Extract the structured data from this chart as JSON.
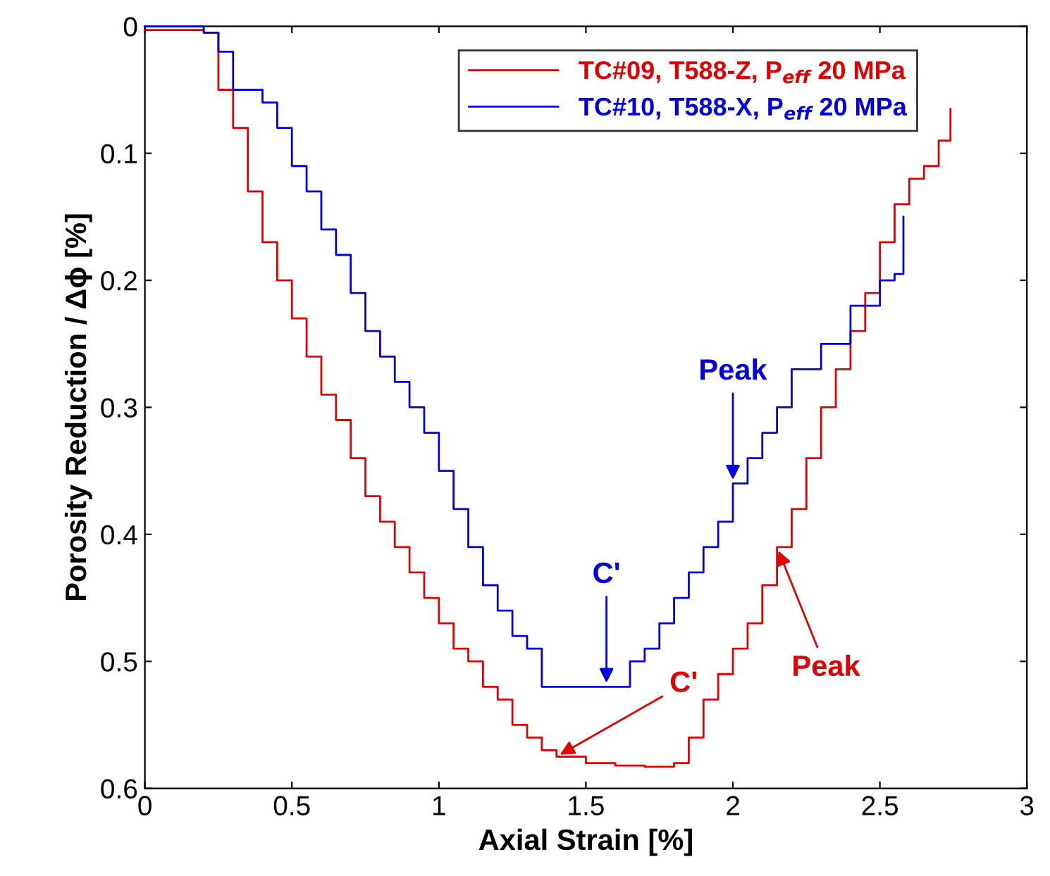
{
  "chart_data": {
    "type": "step",
    "xlabel": "Axial Strain [%]",
    "ylabel": "Porosity Reduction / Δϕ [%]",
    "xlim": [
      0,
      3
    ],
    "ylim": [
      0.6,
      0
    ],
    "xticks": [
      0,
      0.5,
      1,
      1.5,
      2,
      2.5,
      3
    ],
    "yticks": [
      0,
      0.1,
      0.2,
      0.3,
      0.4,
      0.5,
      0.6
    ],
    "grid": false,
    "legend": "top right",
    "series": [
      {
        "name": "TC#09, T588-Z, P$_{eff}$ 20 MPa",
        "color": "#e00000",
        "x": [
          0,
          0.1,
          0.2,
          0.25,
          0.3,
          0.35,
          0.4,
          0.45,
          0.5,
          0.55,
          0.6,
          0.65,
          0.7,
          0.75,
          0.8,
          0.85,
          0.9,
          0.95,
          1.0,
          1.05,
          1.1,
          1.15,
          1.2,
          1.25,
          1.3,
          1.35,
          1.4,
          1.5,
          1.6,
          1.7,
          1.8,
          1.85,
          1.9,
          1.95,
          2.0,
          2.05,
          2.1,
          2.15,
          2.2,
          2.25,
          2.3,
          2.35,
          2.4,
          2.45,
          2.5,
          2.55,
          2.6,
          2.65,
          2.7,
          2.74
        ],
        "values": [
          0.003,
          0.003,
          0.005,
          0.05,
          0.08,
          0.13,
          0.17,
          0.2,
          0.23,
          0.26,
          0.29,
          0.31,
          0.34,
          0.37,
          0.39,
          0.41,
          0.43,
          0.45,
          0.47,
          0.49,
          0.5,
          0.52,
          0.53,
          0.55,
          0.56,
          0.57,
          0.575,
          0.58,
          0.582,
          0.583,
          0.58,
          0.56,
          0.53,
          0.51,
          0.49,
          0.47,
          0.44,
          0.41,
          0.38,
          0.34,
          0.3,
          0.27,
          0.24,
          0.21,
          0.17,
          0.14,
          0.12,
          0.11,
          0.09,
          0.065
        ]
      },
      {
        "name": "TC#10, T588-X, P$_{eff}$ 20 MPa",
        "color": "#0000e0",
        "x": [
          0,
          0.1,
          0.2,
          0.25,
          0.3,
          0.4,
          0.45,
          0.5,
          0.55,
          0.6,
          0.65,
          0.7,
          0.75,
          0.8,
          0.85,
          0.9,
          0.95,
          1.0,
          1.05,
          1.1,
          1.15,
          1.2,
          1.25,
          1.3,
          1.35,
          1.5,
          1.6,
          1.65,
          1.7,
          1.75,
          1.8,
          1.85,
          1.9,
          1.95,
          2.0,
          2.05,
          2.1,
          2.15,
          2.2,
          2.3,
          2.4,
          2.5,
          2.55,
          2.58
        ],
        "values": [
          0,
          0,
          0.005,
          0.02,
          0.05,
          0.06,
          0.08,
          0.11,
          0.13,
          0.16,
          0.18,
          0.21,
          0.24,
          0.26,
          0.28,
          0.3,
          0.32,
          0.35,
          0.38,
          0.41,
          0.44,
          0.46,
          0.48,
          0.49,
          0.52,
          0.52,
          0.52,
          0.5,
          0.49,
          0.47,
          0.45,
          0.43,
          0.41,
          0.39,
          0.36,
          0.34,
          0.32,
          0.3,
          0.27,
          0.25,
          0.22,
          0.2,
          0.195,
          0.15
        ]
      }
    ],
    "annotations": [
      {
        "text": "Peak",
        "x": 2.0,
        "y": 0.36
      },
      {
        "text": "C'",
        "x": 1.57,
        "y": 0.52
      },
      {
        "text": "C'",
        "x": 1.4,
        "y": 0.575
      },
      {
        "text": "Peak",
        "x": 2.15,
        "y": 0.41
      }
    ]
  }
}
